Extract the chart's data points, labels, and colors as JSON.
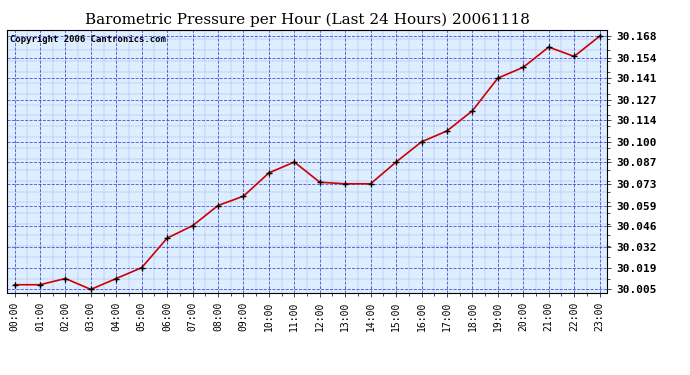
{
  "title": "Barometric Pressure per Hour (Last 24 Hours) 20061118",
  "copyright": "Copyright 2006 Cantronics.com",
  "x_labels": [
    "00:00",
    "01:00",
    "02:00",
    "03:00",
    "04:00",
    "05:00",
    "06:00",
    "07:00",
    "08:00",
    "09:00",
    "10:00",
    "11:00",
    "12:00",
    "13:00",
    "14:00",
    "15:00",
    "16:00",
    "17:00",
    "18:00",
    "19:00",
    "20:00",
    "21:00",
    "22:00",
    "23:00"
  ],
  "hours": [
    0,
    1,
    2,
    3,
    4,
    5,
    6,
    7,
    8,
    9,
    10,
    11,
    12,
    13,
    14,
    15,
    16,
    17,
    18,
    19,
    20,
    21,
    22,
    23
  ],
  "pressure": [
    30.008,
    30.008,
    30.012,
    30.005,
    30.012,
    30.019,
    30.038,
    30.046,
    30.059,
    30.065,
    30.08,
    30.087,
    30.074,
    30.073,
    30.073,
    30.087,
    30.1,
    30.107,
    30.12,
    30.141,
    30.148,
    30.161,
    30.155,
    30.168
  ],
  "ylim_min": 30.003,
  "ylim_max": 30.172,
  "yticks": [
    30.005,
    30.019,
    30.032,
    30.046,
    30.059,
    30.073,
    30.087,
    30.1,
    30.114,
    30.127,
    30.141,
    30.154,
    30.168
  ],
  "line_color": "#cc0000",
  "marker_color": "#000000",
  "bg_color": "#ffffff",
  "plot_bg_color": "#ddeeff",
  "grid_color": "#3333cc",
  "title_fontsize": 11,
  "copyright_fontsize": 6.5,
  "tick_fontsize": 7,
  "ytick_fontsize": 8
}
